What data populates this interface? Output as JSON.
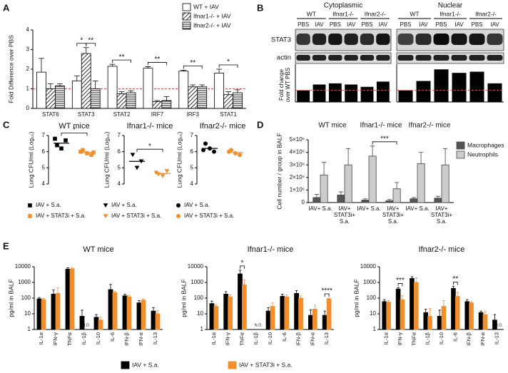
{
  "chart_data": [
    {
      "panel": "A",
      "type": "bar",
      "ylabel": "Fold Difference over PBS",
      "categories": [
        "STAT6",
        "STAT3",
        "STAT2",
        "IRF7",
        "IRF3",
        "STAT1"
      ],
      "series": [
        {
          "name": "WT + IAV",
          "color": "#ffffff",
          "pattern": "none",
          "values": [
            1.85,
            1.4,
            2.15,
            2.05,
            1.9,
            1.8
          ],
          "errors": [
            0.7,
            0.25,
            0.1,
            0.08,
            0.05,
            0.2
          ]
        },
        {
          "name": "Ifnar1-/- + IAV",
          "color": "#ffffff",
          "pattern": "diagonal",
          "values": [
            1,
            2.8,
            0.75,
            0.35,
            1.1,
            0.7
          ],
          "errors": [
            0.25,
            0.3,
            0.1,
            0.05,
            0.1,
            0.15
          ]
        },
        {
          "name": "Ifnar2-/- + IAV",
          "color": "#ffffff",
          "pattern": "horizontal",
          "values": [
            1.15,
            1,
            0.8,
            0.4,
            1.1,
            0.8
          ],
          "errors": [
            0.1,
            0.4,
            0.1,
            0.2,
            0.1,
            0.15
          ]
        }
      ],
      "bar_edge": "#000000",
      "ylim": [
        0,
        4
      ],
      "yticks": [
        0,
        1,
        2,
        3,
        4
      ],
      "reference_line": 1,
      "reference_color": "#e05050",
      "annotations": [
        "*",
        "**",
        "**",
        "**",
        "**",
        "*"
      ]
    },
    {
      "panel": "B",
      "type": "blot",
      "blot_titles": [
        "Cytoplasmic",
        "Nuclear"
      ],
      "groups": [
        "WT",
        "Ifnar1-/-",
        "Ifnar2-/-"
      ],
      "lanes": [
        "PBS",
        "IAV"
      ],
      "blot_rows": [
        "STAT3",
        "actin"
      ],
      "ylabel": "Fold change over WT PBS",
      "color": "#000000",
      "ylim": [
        0,
        3
      ],
      "reference_line": 1,
      "reference_color": "#e05050",
      "panels": [
        {
          "values": [
            1,
            1.5,
            1.6,
            1.5,
            1.3,
            1.75
          ]
        },
        {
          "values": [
            1,
            1.8,
            2.8,
            2.5,
            2.6,
            1.6
          ]
        }
      ]
    },
    {
      "panel": "C",
      "type": "strip",
      "title": "WT mice",
      "ylabel": "Lung CFU/ml (Log₁₀)",
      "series": [
        {
          "name": "IAV + S.a.",
          "color": "#000000",
          "marker": "square",
          "values": [
            6.4,
            6.7,
            6.2,
            6.8
          ]
        },
        {
          "name": "IAV + STAT3i + S.a.",
          "color": "#f28e2b",
          "marker": "square",
          "values": [
            6.1,
            5.8,
            5.9,
            6,
            5.95
          ]
        }
      ],
      "ylim": [
        4,
        7
      ],
      "yticks": [
        4,
        5,
        6,
        7
      ],
      "annotations": [
        "*"
      ]
    },
    {
      "type": "strip",
      "title": "Ifnar1-/- mice",
      "ylabel": "Lung CFU/ml (Log₁₀)",
      "series": [
        {
          "name": "IAV + S.a.",
          "color": "#000000",
          "marker": "triangle",
          "values": [
            5.8,
            5.4,
            5
          ]
        },
        {
          "name": "IAV + STAT3i + S.a.",
          "color": "#f28e2b",
          "marker": "triangle",
          "values": [
            4.6,
            4.8,
            4.5,
            4.7
          ]
        }
      ],
      "ylim": [
        4,
        7
      ],
      "yticks": [
        4,
        5,
        6,
        7
      ],
      "annotations": [
        "*"
      ]
    },
    {
      "type": "strip",
      "title": "Ifnar2-/- mice",
      "ylabel": "Lung CFU/ml (Log₁₀)",
      "series": [
        {
          "name": "IAV + S.a.",
          "color": "#000000",
          "marker": "circle",
          "values": [
            6.5,
            6,
            6.2,
            6.1
          ]
        },
        {
          "name": "IAV + STAT3i + S.a.",
          "color": "#f28e2b",
          "marker": "circle",
          "values": [
            6.1,
            5.8,
            5.9,
            6
          ]
        }
      ],
      "ylim": [
        4,
        7
      ],
      "yticks": [
        4,
        5,
        6,
        7
      ]
    },
    {
      "panel": "D",
      "type": "bar",
      "ylabel": "Cell number / group in BALF",
      "group_titles": [
        "WT mice",
        "Ifnar1-/- mice",
        "Ifnar2-/- mice"
      ],
      "categories": [
        "IAV+ S.a.",
        "IAV+ STAT3i+ S.a.",
        "IAV+ S.a.",
        "IAV+ STAT3i+ S.a.",
        "IAV+ S.a.",
        "IAV+ STAT3i+ S.a."
      ],
      "series": [
        {
          "name": "Macrophages",
          "color": "#555555",
          "values": [
            400000,
            600000,
            200000,
            150000,
            300000,
            350000
          ],
          "errors": [
            250000,
            250000,
            100000,
            100000,
            100000,
            150000
          ]
        },
        {
          "name": "Neutrophils",
          "color": "#cccccc",
          "values": [
            2200000,
            3000000,
            3700000,
            1100000,
            3100000,
            3000000
          ],
          "errors": [
            1000000,
            1300000,
            800000,
            500000,
            900000,
            1300000
          ]
        }
      ],
      "bar_edge": "#444444",
      "ylim": [
        0,
        5000000
      ],
      "yticks": [
        0,
        {
          "value": 1000000,
          "label": "1×10⁶"
        },
        {
          "value": 2000000,
          "label": "2×10⁶"
        },
        {
          "value": 3000000,
          "label": "3×10⁶"
        },
        {
          "value": 4000000,
          "label": "4×10⁶"
        },
        {
          "value": 5000000,
          "label": "5×10⁶"
        }
      ],
      "annotations": [
        "***"
      ]
    },
    {
      "panel": "E",
      "type": "bar",
      "title": "WT mice",
      "ylabel": "pg/ml in BALF",
      "log_y": true,
      "missing_label": "N.D.",
      "categories": [
        "IL-1α",
        "IFN-γ",
        "TNFα",
        "IL-1β",
        "IL-10",
        "IL-6",
        "IFN-β",
        "IFN-α",
        "IL-13"
      ],
      "series": [
        {
          "name": "IAV + S.a.",
          "color": "#000000",
          "values": [
            90,
            180,
            7000,
            7,
            6,
            350,
            140,
            50,
            15
          ],
          "errors": [
            20,
            150,
            1500,
            10,
            3,
            400,
            40,
            20,
            10
          ]
        },
        {
          "name": "IAV + STAT3i + S.a.",
          "color": "#f28e2b",
          "values": [
            80,
            200,
            7500,
            null,
            4,
            220,
            120,
            75,
            10
          ],
          "errors": [
            15,
            250,
            1500,
            null,
            2,
            50,
            30,
            15,
            6
          ]
        }
      ],
      "ylim": [
        1,
        10000
      ],
      "yticks": [
        1,
        10,
        100,
        1000,
        10000
      ]
    },
    {
      "type": "bar",
      "title": "Ifnar1-/- mice",
      "ylabel": "pg/ml in BALF",
      "log_y": true,
      "missing_label": "N.D.",
      "categories": [
        "IL-1α",
        "IFN-γ",
        "TNFα",
        "IL-1β",
        "IL-10",
        "IL-6",
        "IFN-β",
        "IFN-α",
        "IL-13"
      ],
      "series": [
        {
          "name": "IAV + S.a.",
          "color": "#000000",
          "values": [
            45,
            180,
            3500,
            null,
            15,
            130,
            200,
            8,
            8
          ],
          "errors": [
            20,
            80,
            2500,
            null,
            10,
            50,
            100,
            10,
            7
          ]
        },
        {
          "name": "IAV + STAT3i + S.a.",
          "color": "#f28e2b",
          "values": [
            30,
            120,
            700,
            null,
            30,
            120,
            100,
            20,
            90
          ],
          "errors": [
            10,
            40,
            800,
            null,
            20,
            40,
            40,
            15,
            10
          ]
        }
      ],
      "ylim": [
        1,
        10000
      ],
      "yticks": [
        1,
        10,
        100,
        1000,
        10000
      ],
      "annotations": [
        "*",
        "****"
      ]
    },
    {
      "type": "bar",
      "title": "Ifnar2-/- mice",
      "ylabel": "pg/ml in BALF",
      "log_y": true,
      "missing_label": "N.D.",
      "categories": [
        "IL-1α",
        "IFN-γ",
        "TNFα",
        "IL-1β",
        "IL-10",
        "IL-6",
        "IFN-β",
        "IFN-α",
        "IL-13"
      ],
      "series": [
        {
          "name": "IAV + S.a.",
          "color": "#000000",
          "values": [
            60,
            380,
            1800,
            12,
            7,
            420,
            60,
            12,
            4
          ],
          "errors": [
            20,
            80,
            500,
            8,
            10,
            150,
            20,
            3,
            5
          ]
        },
        {
          "name": "IAV + STAT3i + S.a.",
          "color": "#f28e2b",
          "values": [
            55,
            80,
            1000,
            7,
            30,
            130,
            50,
            9,
            null
          ],
          "errors": [
            15,
            60,
            1000,
            15,
            40,
            100,
            10,
            5,
            null
          ]
        }
      ],
      "ylim": [
        1,
        10000
      ],
      "yticks": [
        1,
        10,
        100,
        1000,
        10000
      ],
      "annotations": [
        "***",
        "**"
      ]
    }
  ]
}
